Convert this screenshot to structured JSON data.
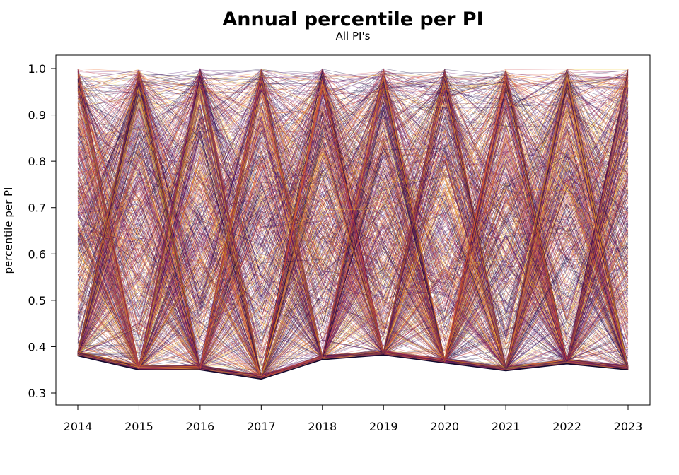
{
  "chart_data": {
    "type": "line",
    "title": "Annual percentile per PI",
    "subtitle": "All PI's",
    "xlabel": "",
    "ylabel": "percentile per PI",
    "categories": [
      "2014",
      "2015",
      "2016",
      "2017",
      "2018",
      "2019",
      "2020",
      "2021",
      "2022",
      "2023"
    ],
    "ylim": [
      0.28,
      1.03
    ],
    "yticks": [
      0.3,
      0.4,
      0.5,
      0.6,
      0.7,
      0.8,
      0.9,
      1.0
    ],
    "ytick_labels": [
      "0.3",
      "0.4",
      "0.5",
      "0.6",
      "0.7",
      "0.8",
      "0.9",
      "1.0"
    ],
    "lower_envelope": [
      0.38,
      0.35,
      0.35,
      0.33,
      0.372,
      0.382,
      0.365,
      0.348,
      0.363,
      0.35
    ],
    "upper_bound": 1.0,
    "series_count_estimate": 900,
    "grid": false,
    "legend": "none",
    "palette": [
      "#1b0c41",
      "#4a0c6b",
      "#781c6d",
      "#a52c60",
      "#cf4446",
      "#ed6925",
      "#fb9b06",
      "#f7d13d"
    ]
  }
}
